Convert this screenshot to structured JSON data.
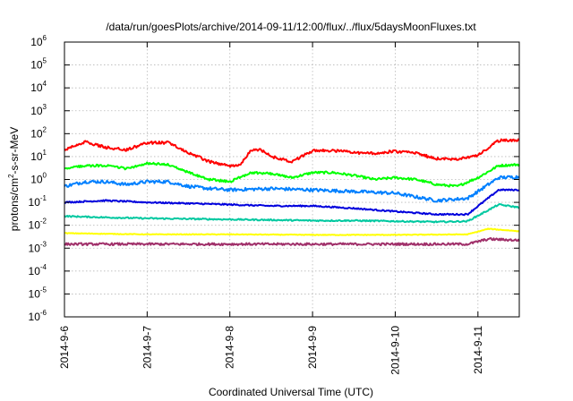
{
  "chart_data": {
    "type": "line",
    "title": "/data/run/goesPlots/archive/2014-09-11/12:00/flux/../flux/5daysMoonFluxes.txt",
    "xlabel": "Coordinated Universal Time (UTC)",
    "ylabel": {
      "base": "protons/cm",
      "sup": "2",
      "rest": "-s-sr-MeV"
    },
    "yscale": "log",
    "ylim_exp": [
      -6,
      6
    ],
    "yticks": [
      {
        "exp": -6,
        "base": "10",
        "sup": "-6"
      },
      {
        "exp": -5,
        "base": "10",
        "sup": "-5"
      },
      {
        "exp": -4,
        "base": "10",
        "sup": "-4"
      },
      {
        "exp": -3,
        "base": "10",
        "sup": "-3"
      },
      {
        "exp": -2,
        "base": "10",
        "sup": "-2"
      },
      {
        "exp": -1,
        "base": "10",
        "sup": "-1"
      },
      {
        "exp": 0,
        "base": "10",
        "sup": "0"
      },
      {
        "exp": 1,
        "base": "10",
        "sup": "1"
      },
      {
        "exp": 2,
        "base": "10",
        "sup": "2"
      },
      {
        "exp": 3,
        "base": "10",
        "sup": "3"
      },
      {
        "exp": 4,
        "base": "10",
        "sup": "4"
      },
      {
        "exp": 5,
        "base": "10",
        "sup": "5"
      },
      {
        "exp": 6,
        "base": "10",
        "sup": "6"
      }
    ],
    "xlim": [
      "2014-09-06",
      "2014-09-11 12:00"
    ],
    "xticks": [
      "2014-9-6",
      "2014-9-7",
      "2014-9-8",
      "2014-9-9",
      "2014-9-10",
      "2014-9-11"
    ],
    "grid": true,
    "series": [
      {
        "color": "#ff0000",
        "noise": 0.06,
        "x": [
          "2014-09-06 00:00",
          "2014-09-06 06:00",
          "2014-09-06 12:00",
          "2014-09-06 18:00",
          "2014-09-07 00:00",
          "2014-09-07 06:00",
          "2014-09-07 12:00",
          "2014-09-07 18:00",
          "2014-09-08 00:00",
          "2014-09-08 03:00",
          "2014-09-08 06:00",
          "2014-09-08 09:00",
          "2014-09-08 12:00",
          "2014-09-08 18:00",
          "2014-09-09 00:00",
          "2014-09-09 06:00",
          "2014-09-09 12:00",
          "2014-09-09 18:00",
          "2014-09-10 00:00",
          "2014-09-10 06:00",
          "2014-09-10 12:00",
          "2014-09-10 18:00",
          "2014-09-11 00:00",
          "2014-09-11 06:00",
          "2014-09-11 12:00"
        ],
        "y": [
          20,
          45,
          25,
          20,
          40,
          40,
          15,
          6,
          4,
          4.5,
          18,
          20,
          10,
          6,
          18,
          18,
          15,
          14,
          17,
          14,
          8,
          8,
          11,
          50,
          50
        ]
      },
      {
        "color": "#00ff00",
        "noise": 0.05,
        "x": [
          "2014-09-06 00:00",
          "2014-09-06 06:00",
          "2014-09-06 12:00",
          "2014-09-06 18:00",
          "2014-09-07 00:00",
          "2014-09-07 06:00",
          "2014-09-07 12:00",
          "2014-09-07 18:00",
          "2014-09-08 00:00",
          "2014-09-08 06:00",
          "2014-09-08 12:00",
          "2014-09-08 18:00",
          "2014-09-09 00:00",
          "2014-09-09 06:00",
          "2014-09-09 12:00",
          "2014-09-09 18:00",
          "2014-09-10 00:00",
          "2014-09-10 06:00",
          "2014-09-10 12:00",
          "2014-09-10 18:00",
          "2014-09-11 00:00",
          "2014-09-11 06:00",
          "2014-09-11 12:00"
        ],
        "y": [
          3,
          4,
          4,
          3,
          5,
          4.5,
          2,
          1,
          0.8,
          2,
          1.8,
          1.2,
          2,
          2,
          1.5,
          1,
          1.2,
          1,
          0.6,
          0.5,
          1.2,
          4,
          4.5
        ]
      },
      {
        "color": "#0080ff",
        "noise": 0.07,
        "x": [
          "2014-09-06 00:00",
          "2014-09-06 06:00",
          "2014-09-06 12:00",
          "2014-09-06 18:00",
          "2014-09-07 00:00",
          "2014-09-07 06:00",
          "2014-09-07 12:00",
          "2014-09-07 18:00",
          "2014-09-08 00:00",
          "2014-09-08 12:00",
          "2014-09-09 00:00",
          "2014-09-09 12:00",
          "2014-09-10 00:00",
          "2014-09-10 12:00",
          "2014-09-10 21:00",
          "2014-09-11 06:00",
          "2014-09-11 12:00"
        ],
        "y": [
          0.5,
          0.8,
          0.8,
          0.6,
          0.8,
          0.8,
          0.5,
          0.4,
          0.35,
          0.4,
          0.35,
          0.3,
          0.25,
          0.12,
          0.15,
          1.2,
          1.3
        ]
      },
      {
        "color": "#0000dd",
        "noise": 0.03,
        "x": [
          "2014-09-06 00:00",
          "2014-09-06 12:00",
          "2014-09-07 00:00",
          "2014-09-07 12:00",
          "2014-09-08 00:00",
          "2014-09-08 12:00",
          "2014-09-09 00:00",
          "2014-09-09 12:00",
          "2014-09-10 00:00",
          "2014-09-10 12:00",
          "2014-09-10 21:00",
          "2014-09-11 06:00",
          "2014-09-11 12:00"
        ],
        "y": [
          0.1,
          0.12,
          0.1,
          0.09,
          0.08,
          0.07,
          0.07,
          0.055,
          0.04,
          0.03,
          0.03,
          0.35,
          0.35
        ]
      },
      {
        "color": "#00c8a0",
        "noise": 0.03,
        "x": [
          "2014-09-06 00:00",
          "2014-09-06 12:00",
          "2014-09-07 00:00",
          "2014-09-07 12:00",
          "2014-09-08 00:00",
          "2014-09-08 12:00",
          "2014-09-09 00:00",
          "2014-09-09 12:00",
          "2014-09-10 00:00",
          "2014-09-10 12:00",
          "2014-09-10 21:00",
          "2014-09-11 06:00",
          "2014-09-11 12:00"
        ],
        "y": [
          0.025,
          0.022,
          0.02,
          0.019,
          0.018,
          0.017,
          0.016,
          0.016,
          0.015,
          0.014,
          0.015,
          0.08,
          0.06
        ]
      },
      {
        "color": "#ffff00",
        "noise": 0.015,
        "x": [
          "2014-09-06 00:00",
          "2014-09-07 00:00",
          "2014-09-08 00:00",
          "2014-09-09 00:00",
          "2014-09-10 00:00",
          "2014-09-10 21:00",
          "2014-09-11 03:00",
          "2014-09-11 12:00"
        ],
        "y": [
          0.0045,
          0.004,
          0.004,
          0.0038,
          0.0038,
          0.004,
          0.007,
          0.0055
        ]
      },
      {
        "color": "#a0306a",
        "noise": 0.05,
        "x": [
          "2014-09-06 00:00",
          "2014-09-07 00:00",
          "2014-09-08 00:00",
          "2014-09-09 00:00",
          "2014-09-10 00:00",
          "2014-09-10 21:00",
          "2014-09-11 03:00",
          "2014-09-11 12:00"
        ],
        "y": [
          0.0015,
          0.0015,
          0.0015,
          0.0015,
          0.0015,
          0.0015,
          0.0025,
          0.0022
        ]
      }
    ]
  }
}
